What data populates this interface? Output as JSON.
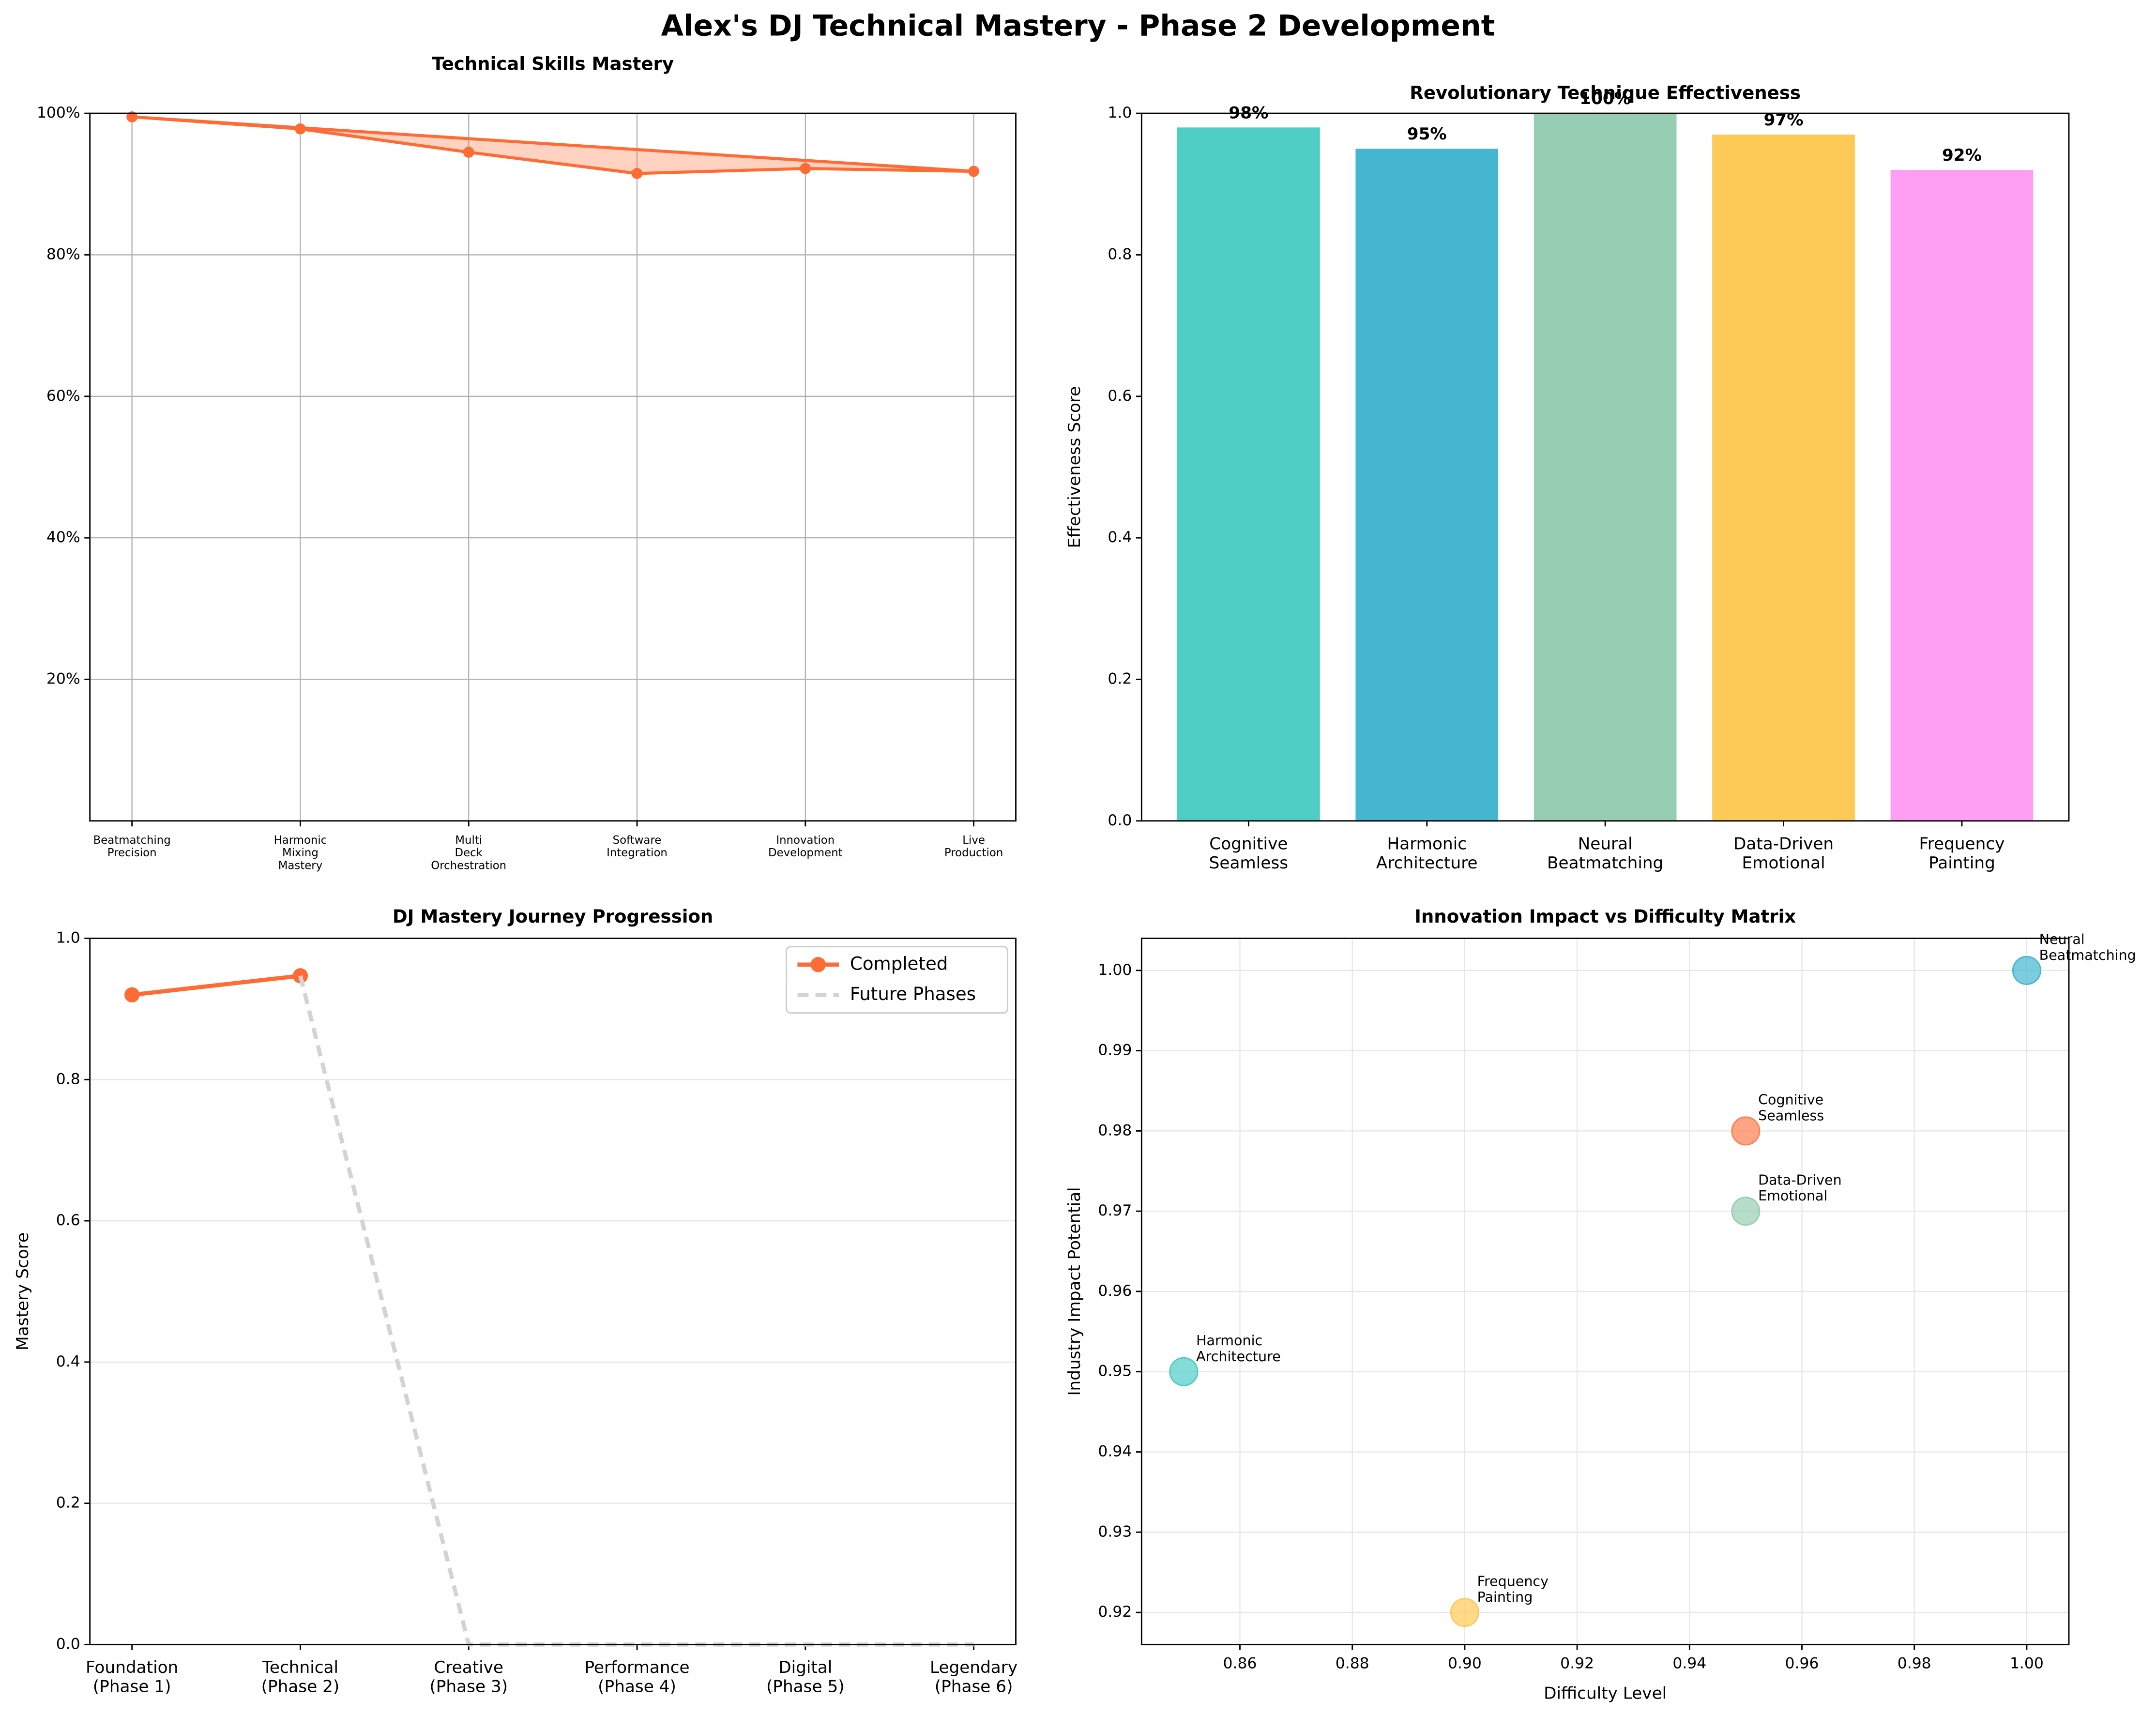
{
  "title": "Alex's DJ Technical Mastery - Phase 2 Development",
  "chart_data": [
    {
      "type": "line",
      "title": "Technical Skills Mastery",
      "fill": true,
      "closed": true,
      "grid": "both",
      "color": "#ff6b35",
      "categories": [
        "Beatmatching\nPrecision",
        "Harmonic\nMixing\nMastery",
        "Multi\nDeck\nOrchestration",
        "Software\nIntegration",
        "Innovation\nDevelopment",
        "Live\nProduction"
      ],
      "series": [
        {
          "name": null,
          "color": "#ff6b35",
          "values": [
            99.5,
            97.8,
            94.5,
            91.5,
            92.2,
            91.8
          ]
        }
      ],
      "ylim": [
        0,
        100
      ],
      "yticks": [
        {
          "value": 20,
          "label": "20%"
        },
        {
          "value": 40,
          "label": "40%"
        },
        {
          "value": 60,
          "label": "60%"
        },
        {
          "value": 80,
          "label": "80%"
        },
        {
          "value": 100,
          "label": "100%"
        }
      ]
    },
    {
      "type": "bar",
      "title": "Revolutionary Technique Effectiveness",
      "ylabel": "Effectiveness Score",
      "grid": false,
      "categories": [
        "Cognitive\nSeamless",
        "Harmonic\nArchitecture",
        "Neural\nBeatmatching",
        "Data-Driven\nEmotional",
        "Frequency\nPainting"
      ],
      "values": [
        0.98,
        0.95,
        1.0,
        0.97,
        0.92
      ],
      "value_labels": [
        "98%",
        "95%",
        "100%",
        "97%",
        "92%"
      ],
      "colors": [
        "#4ecdc4",
        "#45b7d1",
        "#96ceb4",
        "#feca57",
        "#ff9ff3"
      ],
      "ylim": [
        0,
        1
      ],
      "yticks": [
        {
          "value": 0,
          "label": "0.0"
        },
        0.2,
        0.4,
        0.6,
        0.8,
        {
          "value": 1,
          "label": "1.0"
        }
      ]
    },
    {
      "type": "line",
      "title": "DJ Mastery Journey Progression",
      "ylabel": "Mastery Score",
      "grid": "y",
      "legend": "upper right",
      "categories": [
        "Foundation\n(Phase 1)",
        "Technical\n(Phase 2)",
        "Creative\n(Phase 3)",
        "Performance\n(Phase 4)",
        "Digital\n(Phase 5)",
        "Legendary\n(Phase 6)"
      ],
      "series": [
        {
          "name": "Completed",
          "color": "#ff6b35",
          "values": [
            0.92,
            0.947,
            null,
            null,
            null,
            null
          ],
          "markers": true
        },
        {
          "name": "Future Phases",
          "color": "#d3d3d3",
          "dashed": true,
          "values": [
            null,
            0.947,
            0,
            0,
            0,
            0
          ]
        }
      ],
      "ylim": [
        0,
        1
      ],
      "yticks": [
        {
          "value": 0,
          "label": "0.0"
        },
        0.2,
        0.4,
        0.6,
        0.8,
        {
          "value": 1,
          "label": "1.0"
        }
      ]
    },
    {
      "type": "scatter",
      "title": "Innovation Impact vs Difficulty Matrix",
      "xlabel": "Difficulty Level",
      "ylabel": "Industry Impact Potential",
      "grid": "both",
      "labels": [
        "Cognitive\nSeamless",
        "Harmonic\nArchitecture",
        "Neural\nBeatmatching",
        "Data-Driven\nEmotional",
        "Frequency\nPainting"
      ],
      "x": [
        0.95,
        0.85,
        1.0,
        0.95,
        0.9
      ],
      "y": [
        0.98,
        0.95,
        1.0,
        0.97,
        0.92
      ],
      "colors": [
        "#ff7f50",
        "#4ecdc4",
        "#45b7d1",
        "#96ceb4",
        "#feca57"
      ],
      "xlim": [
        0.8425,
        1.0075
      ],
      "ylim": [
        0.916,
        1.004
      ],
      "xticks": [
        0.86,
        0.88,
        {
          "value": 0.9,
          "label": "0.90"
        },
        0.92,
        0.94,
        0.96,
        0.98,
        {
          "value": 1,
          "label": "1.00"
        }
      ],
      "yticks": [
        0.92,
        0.93,
        0.94,
        0.95,
        0.96,
        0.97,
        0.98,
        0.99,
        {
          "value": 1,
          "label": "1.00"
        }
      ]
    }
  ]
}
